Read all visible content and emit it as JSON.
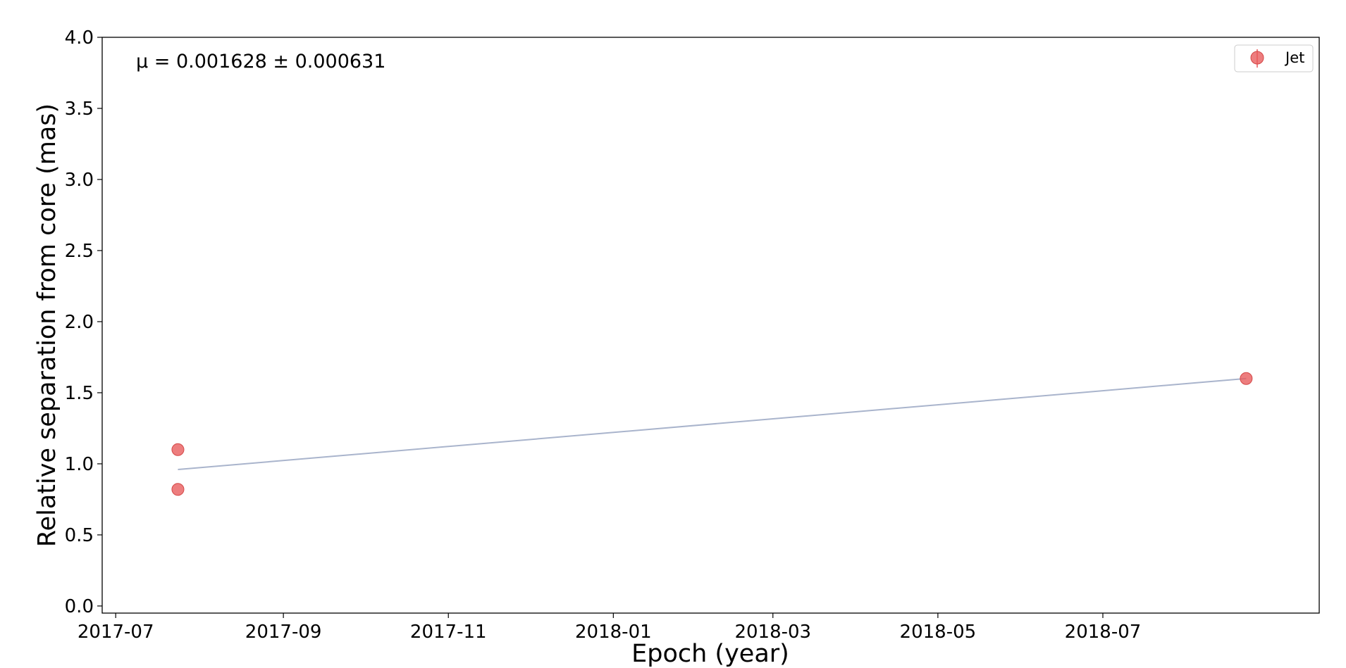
{
  "chart_data": {
    "type": "scatter",
    "title": "",
    "xlabel": "Epoch (year)",
    "ylabel": "Relative separation from core (mas)",
    "xlim": [
      "2017-06-26",
      "2018-09-19"
    ],
    "ylim": [
      -0.05,
      4.0
    ],
    "x_ticks": [
      "2017-07",
      "2017-09",
      "2017-11",
      "2018-01",
      "2018-03",
      "2018-05",
      "2018-07"
    ],
    "y_ticks": [
      "0.0",
      "0.5",
      "1.0",
      "1.5",
      "2.0",
      "2.5",
      "3.0",
      "3.5",
      "4.0"
    ],
    "grid": false,
    "legend_position": "top-right",
    "annotation": "μ = 0.001628 ± 0.000631",
    "series": [
      {
        "name": "Jet",
        "kind": "points",
        "color": "#e8585a",
        "points": [
          {
            "x": "2017-07-24",
            "y": 1.1
          },
          {
            "x": "2017-07-24",
            "y": 0.82
          },
          {
            "x": "2018-08-23",
            "y": 1.6
          }
        ]
      },
      {
        "kind": "fit-line",
        "color": "#a9b4cc",
        "points": [
          {
            "x": "2017-07-24",
            "y": 0.96
          },
          {
            "x": "2018-08-23",
            "y": 1.6
          }
        ]
      }
    ]
  }
}
